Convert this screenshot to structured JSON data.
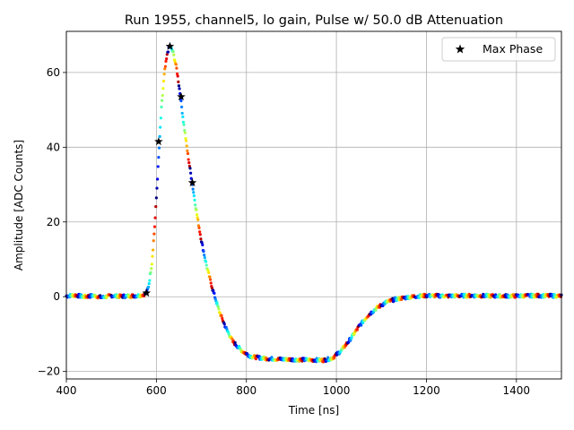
{
  "chart_data": {
    "type": "scatter",
    "title": "Run 1955, channel5, lo gain, Pulse w/ 50.0 dB Attenuation",
    "xlabel": "Time [ns]",
    "ylabel": "Amplitude [ADC Counts]",
    "xlim": [
      400,
      1500
    ],
    "ylim": [
      -22,
      71
    ],
    "xticks": [
      400,
      600,
      800,
      1000,
      1200,
      1400
    ],
    "yticks": [
      -20,
      0,
      20,
      40,
      60
    ],
    "grid": true,
    "legend": {
      "position": "top-right",
      "entries": [
        "Max Phase"
      ]
    },
    "waveform_points": [
      [
        400,
        0.2
      ],
      [
        420,
        0.4
      ],
      [
        440,
        0.0
      ],
      [
        460,
        0.3
      ],
      [
        480,
        -0.2
      ],
      [
        500,
        0.3
      ],
      [
        520,
        0.1
      ],
      [
        540,
        0.2
      ],
      [
        560,
        0.3
      ],
      [
        570,
        0.5
      ],
      [
        578,
        1.0
      ],
      [
        583,
        3.0
      ],
      [
        590,
        9.0
      ],
      [
        597,
        20.0
      ],
      [
        604,
        35.0
      ],
      [
        611,
        50.0
      ],
      [
        618,
        60.0
      ],
      [
        625,
        65.5
      ],
      [
        630,
        67.0
      ],
      [
        637,
        65.5
      ],
      [
        645,
        61.0
      ],
      [
        652,
        55.0
      ],
      [
        660,
        47.0
      ],
      [
        670,
        38.0
      ],
      [
        680,
        30.0
      ],
      [
        690,
        22.0
      ],
      [
        700,
        15.0
      ],
      [
        712,
        8.0
      ],
      [
        725,
        2.0
      ],
      [
        740,
        -4.0
      ],
      [
        755,
        -8.5
      ],
      [
        770,
        -12.0
      ],
      [
        790,
        -14.5
      ],
      [
        810,
        -16.0
      ],
      [
        840,
        -16.5
      ],
      [
        870,
        -16.7
      ],
      [
        900,
        -16.8
      ],
      [
        940,
        -16.9
      ],
      [
        970,
        -17.0
      ],
      [
        990,
        -16.5
      ],
      [
        1010,
        -14.5
      ],
      [
        1030,
        -11.5
      ],
      [
        1050,
        -8.0
      ],
      [
        1070,
        -5.0
      ],
      [
        1090,
        -3.0
      ],
      [
        1110,
        -1.5
      ],
      [
        1130,
        -0.7
      ],
      [
        1150,
        -0.3
      ],
      [
        1175,
        0.1
      ],
      [
        1200,
        0.3
      ],
      [
        1250,
        0.2
      ],
      [
        1300,
        0.3
      ],
      [
        1350,
        0.2
      ],
      [
        1400,
        0.2
      ],
      [
        1450,
        0.3
      ],
      [
        1500,
        0.2
      ]
    ],
    "series": [
      {
        "name": "Max Phase",
        "marker": "star",
        "color": "#000000",
        "points": [
          [
            578,
            1.0
          ],
          [
            605,
            41.5
          ],
          [
            630,
            67.0
          ],
          [
            655,
            53.5
          ],
          [
            680,
            30.5
          ]
        ]
      }
    ]
  }
}
